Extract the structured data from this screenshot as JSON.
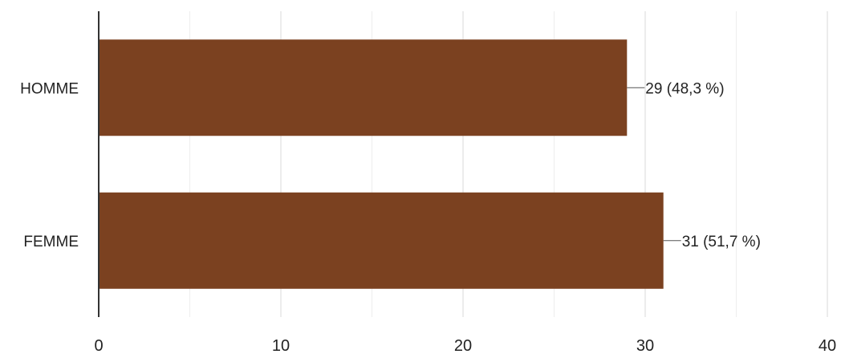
{
  "chart_data": {
    "type": "bar",
    "orientation": "horizontal",
    "categories": [
      "HOMME",
      "FEMME"
    ],
    "values": [
      29,
      31
    ],
    "data_labels": [
      "29 (48,3 %)",
      "31 (51,7 %)"
    ],
    "xlim": [
      0,
      40
    ],
    "x_ticks": [
      0,
      10,
      20,
      30,
      40
    ],
    "x_tick_labels": [
      "0",
      "10",
      "20",
      "30",
      "40"
    ],
    "grid": true,
    "bar_color": "#7b4120",
    "title": "",
    "xlabel": "",
    "ylabel": ""
  }
}
